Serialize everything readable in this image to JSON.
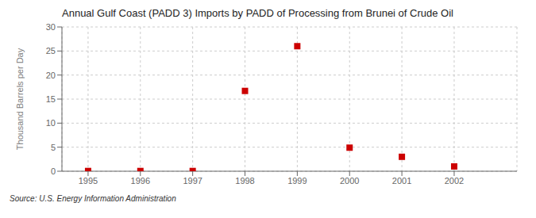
{
  "chart_data": {
    "type": "scatter",
    "title": "Annual Gulf Coast (PADD 3) Imports by PADD of Processing from Brunei of Crude Oil",
    "ylabel": "Thousand Barrels per Day",
    "source": "Source: U.S. Energy Information Administration",
    "x": [
      1995,
      1996,
      1997,
      1998,
      1999,
      2000,
      2001,
      2002
    ],
    "values": [
      0.05,
      0.05,
      0.05,
      16.7,
      26.0,
      4.9,
      3.0,
      1.0
    ],
    "color": "#cc0000",
    "marker": "square",
    "xlim": [
      1994.5,
      2003.2
    ],
    "xticks": [
      1995,
      1996,
      1997,
      1998,
      1999,
      2000,
      2001,
      2002
    ],
    "ylim": [
      0,
      30
    ],
    "yticks": [
      0,
      5,
      10,
      15,
      20,
      25,
      30
    ],
    "grid": true
  }
}
